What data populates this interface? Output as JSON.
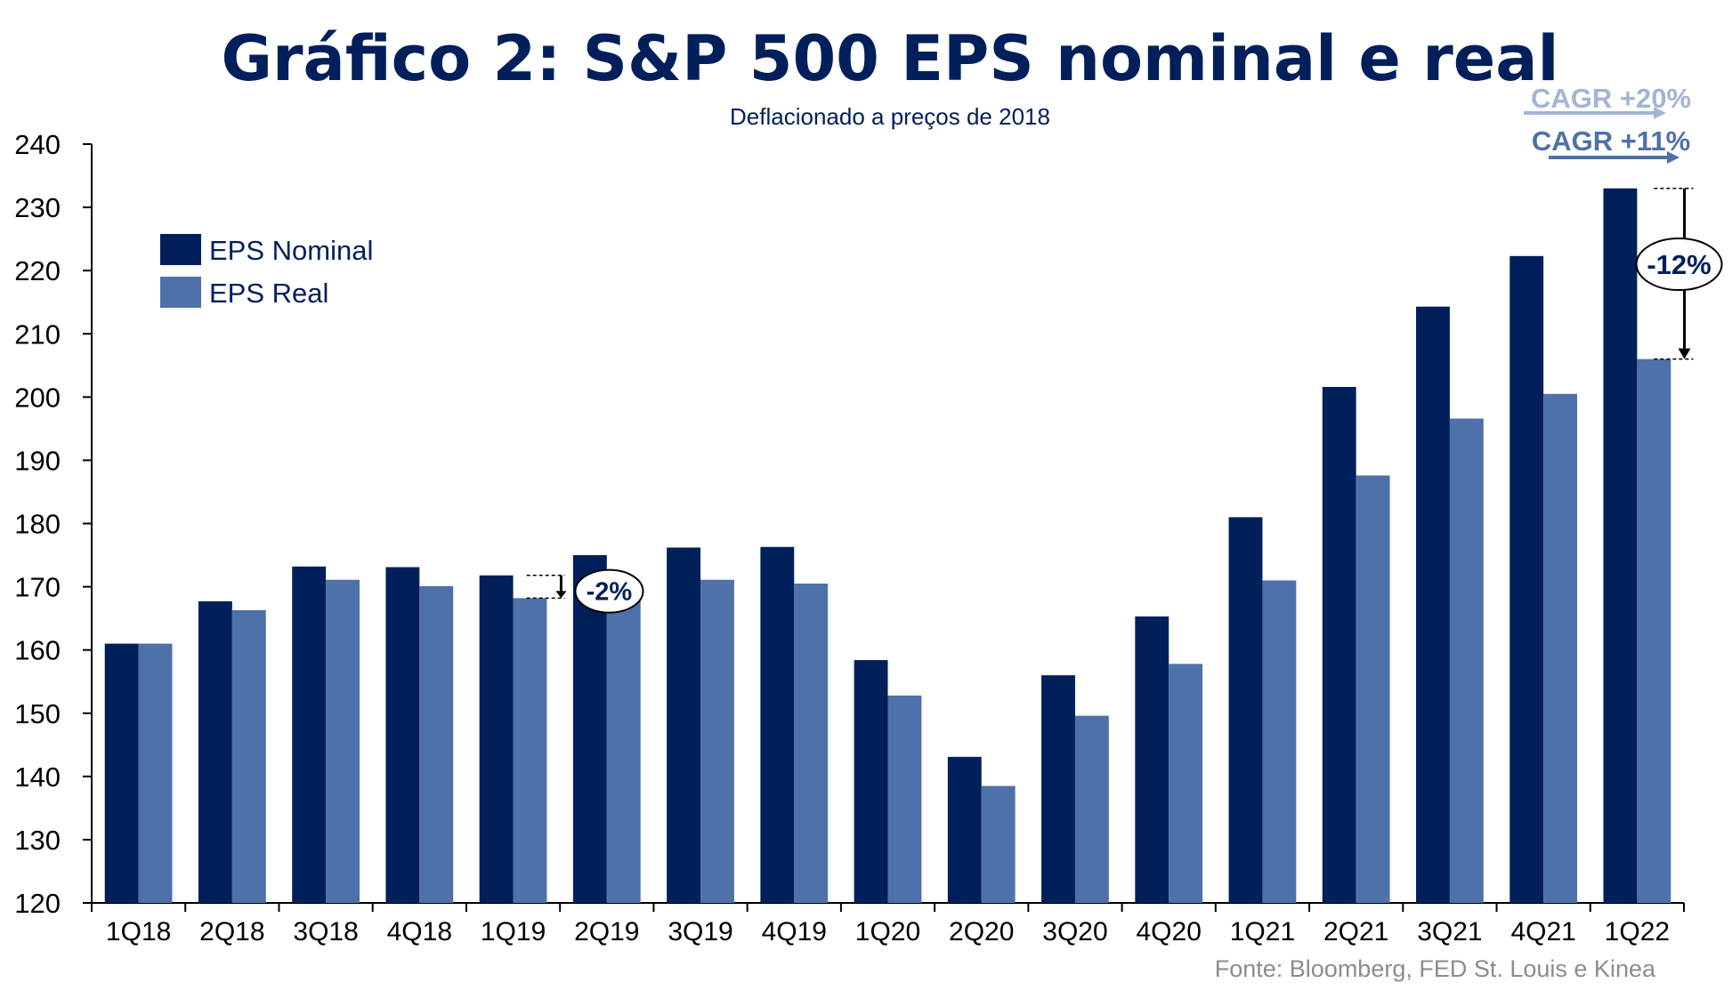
{
  "chart_data": {
    "type": "bar",
    "title": "Gráfico 2: S&P 500 EPS nominal e real",
    "subtitle": "Deflacionado a preços de 2018",
    "source": "Fonte:  Bloomberg, FED St. Louis e Kinea",
    "categories": [
      "1Q18",
      "2Q18",
      "3Q18",
      "4Q18",
      "1Q19",
      "2Q19",
      "3Q19",
      "4Q19",
      "1Q20",
      "2Q20",
      "3Q20",
      "4Q20",
      "1Q21",
      "2Q21",
      "3Q21",
      "4Q21",
      "1Q22"
    ],
    "series": [
      {
        "name": "EPS Nominal",
        "color": "#001f5b",
        "values": [
          161.0,
          167.7,
          173.2,
          173.1,
          171.8,
          175.0,
          176.2,
          176.3,
          158.4,
          143.1,
          156.0,
          165.3,
          181.0,
          201.6,
          214.3,
          222.3,
          233.0
        ]
      },
      {
        "name": "EPS Real",
        "color": "#4f71a9",
        "values": [
          161.0,
          166.3,
          171.1,
          170.1,
          168.2,
          170.2,
          171.1,
          170.5,
          152.8,
          138.5,
          149.6,
          157.8,
          171.0,
          187.6,
          196.6,
          200.5,
          206.0
        ]
      }
    ],
    "ylim": [
      120,
      240
    ],
    "yticks": [
      120,
      130,
      140,
      150,
      160,
      170,
      180,
      190,
      200,
      210,
      220,
      230,
      240
    ],
    "xlabel": "",
    "ylabel": "",
    "legend_position": "top-left",
    "grid": false,
    "annotations": [
      {
        "text": "-2%",
        "category": "1Q19",
        "from": 171.8,
        "to": 168.2
      },
      {
        "text": "-12%",
        "category": "1Q22",
        "from": 233.0,
        "to": 206.0
      },
      {
        "text": "CAGR +20%",
        "color": "#a3b4d6"
      },
      {
        "text": "CAGR +11%",
        "color": "#4f71a9"
      }
    ]
  }
}
